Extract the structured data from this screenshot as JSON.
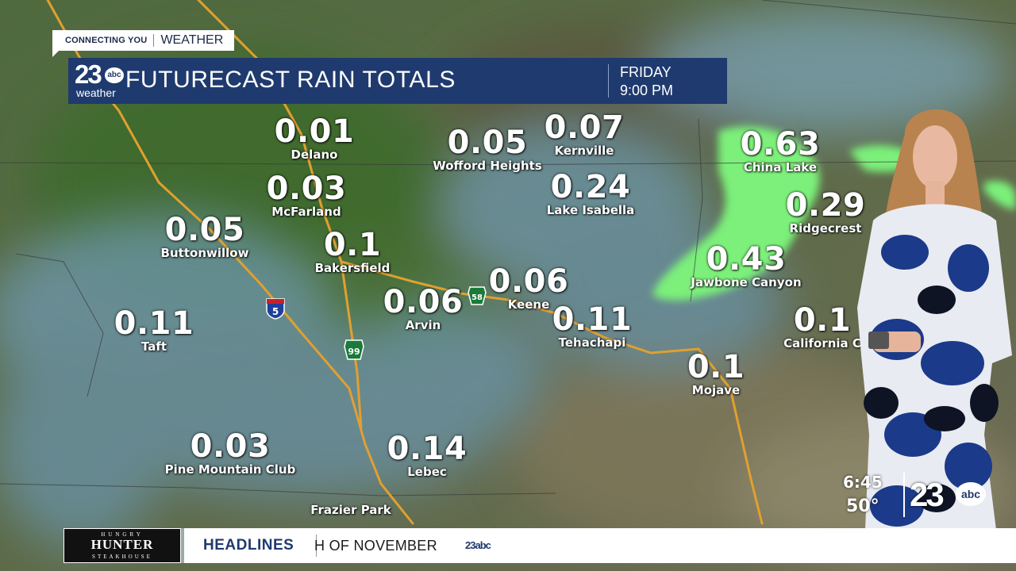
{
  "branding": {
    "tag_left": "CONNECTING YOU",
    "tag_right": "WEATHER",
    "logo_number": "23",
    "logo_network": "abc",
    "logo_sub": "weather"
  },
  "banner": {
    "title": "FUTURECAST RAIN TOTALS",
    "day": "FRIDAY",
    "time": "9:00 PM"
  },
  "locations": [
    {
      "value": "0.01",
      "name": "Delano"
    },
    {
      "value": "0.03",
      "name": "McFarland"
    },
    {
      "value": "0.05",
      "name": "Buttonwillow"
    },
    {
      "value": "0.1",
      "name": "Bakersfield"
    },
    {
      "value": "0.11",
      "name": "Taft"
    },
    {
      "value": "0.06",
      "name": "Arvin"
    },
    {
      "value": "0.05",
      "name": "Wofford Heights"
    },
    {
      "value": "0.07",
      "name": "Kernville"
    },
    {
      "value": "0.24",
      "name": "Lake Isabella"
    },
    {
      "value": "0.06",
      "name": "Keene"
    },
    {
      "value": "0.11",
      "name": "Tehachapi"
    },
    {
      "value": "0.1",
      "name": "Mojave"
    },
    {
      "value": "0.63",
      "name": "China Lake"
    },
    {
      "value": "0.29",
      "name": "Ridgecrest"
    },
    {
      "value": "0.43",
      "name": "Jawbone Canyon"
    },
    {
      "value": "0.1",
      "name": "California C"
    },
    {
      "value": "0.03",
      "name": "Pine Mountain Club"
    },
    {
      "value": "0.14",
      "name": "Lebec"
    },
    {
      "value": "",
      "name": "Frazier Park"
    }
  ],
  "highways": {
    "i5": "5",
    "sr99": "99",
    "sr58": "58"
  },
  "clock": {
    "time": "6:45",
    "temp": "50°"
  },
  "ticker": {
    "sponsor_top": "HUNGRY",
    "sponsor_main": "HUNTER",
    "sponsor_bottom": "STEAKHOUSE",
    "headline_label": "HEADLINES",
    "headline_text": "H OF NOVEMBER",
    "mini_logo": "23abc"
  },
  "colors": {
    "banner": "#1f3a6e",
    "rain": "#7cf07a",
    "highway": "#e0a030"
  }
}
